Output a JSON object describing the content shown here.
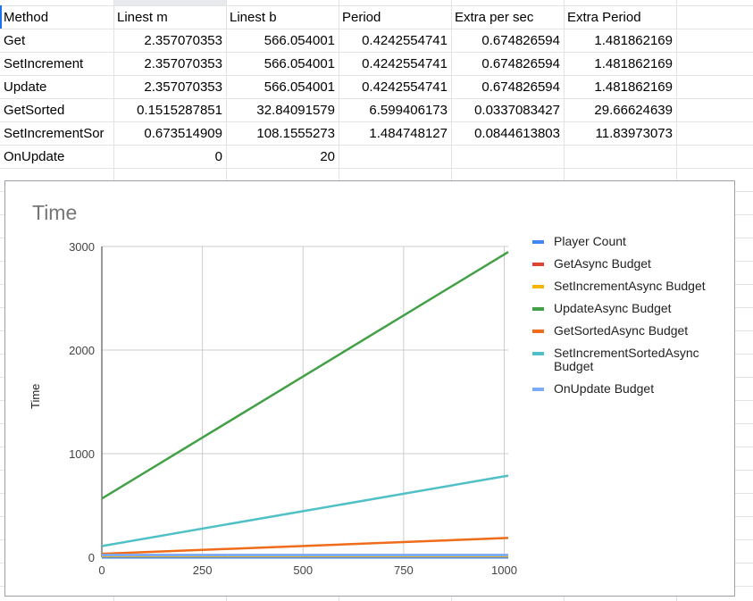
{
  "sheet": {
    "headers": [
      "Method",
      "Linest m",
      "Linest b",
      "Period",
      "Extra per sec",
      "Extra Period"
    ],
    "rows": [
      [
        "Get",
        "2.357070353",
        "566.054001",
        "0.4242554741",
        "0.674826594",
        "1.481862169"
      ],
      [
        "SetIncrement",
        "2.357070353",
        "566.054001",
        "0.4242554741",
        "0.674826594",
        "1.481862169"
      ],
      [
        "Update",
        "2.357070353",
        "566.054001",
        "0.4242554741",
        "0.674826594",
        "1.481862169"
      ],
      [
        "GetSorted",
        "0.1515287851",
        "32.84091579",
        "6.599406173",
        "0.0337083427",
        "29.66624639"
      ],
      [
        "SetIncrementSor",
        "0.673514909",
        "108.1555273",
        "1.484748127",
        "0.0844613803",
        "11.83973073"
      ],
      [
        "OnUpdate",
        "0",
        "20",
        "",
        "",
        ""
      ]
    ]
  },
  "chart_data": {
    "type": "line",
    "title": "Time",
    "xlabel": "",
    "ylabel": "Time",
    "xlim": [
      0,
      1010
    ],
    "ylim": [
      0,
      3000
    ],
    "x_ticks": [
      "0",
      "250",
      "500",
      "750",
      "1000"
    ],
    "y_ticks": [
      "0",
      "1000",
      "2000",
      "3000"
    ],
    "grid": true,
    "legend_position": "right",
    "series": [
      {
        "name": "Player Count",
        "color": "#4285f4",
        "x": [
          0,
          1010
        ],
        "y": [
          0,
          0
        ]
      },
      {
        "name": "GetAsync Budget",
        "color": "#db4437",
        "x": [
          0,
          1010
        ],
        "y": [
          20,
          20
        ]
      },
      {
        "name": "SetIncrementAsync Budget",
        "color": "#f4b400",
        "x": [
          0,
          1010
        ],
        "y": [
          10,
          10
        ]
      },
      {
        "name": "UpdateAsync Budget",
        "color": "#43a047",
        "x": [
          0,
          1010
        ],
        "y": [
          566,
          2947
        ]
      },
      {
        "name": "GetSortedAsync Budget",
        "color": "#ef6c1a",
        "x": [
          0,
          1010
        ],
        "y": [
          33,
          186
        ]
      },
      {
        "name": "SetIncrementSortedAsync Budget",
        "color": "#4fc1c6",
        "x": [
          0,
          1010
        ],
        "y": [
          108,
          788
        ]
      },
      {
        "name": "OnUpdate Budget",
        "color": "#7baaf7",
        "x": [
          0,
          1010
        ],
        "y": [
          20,
          20
        ]
      }
    ]
  }
}
